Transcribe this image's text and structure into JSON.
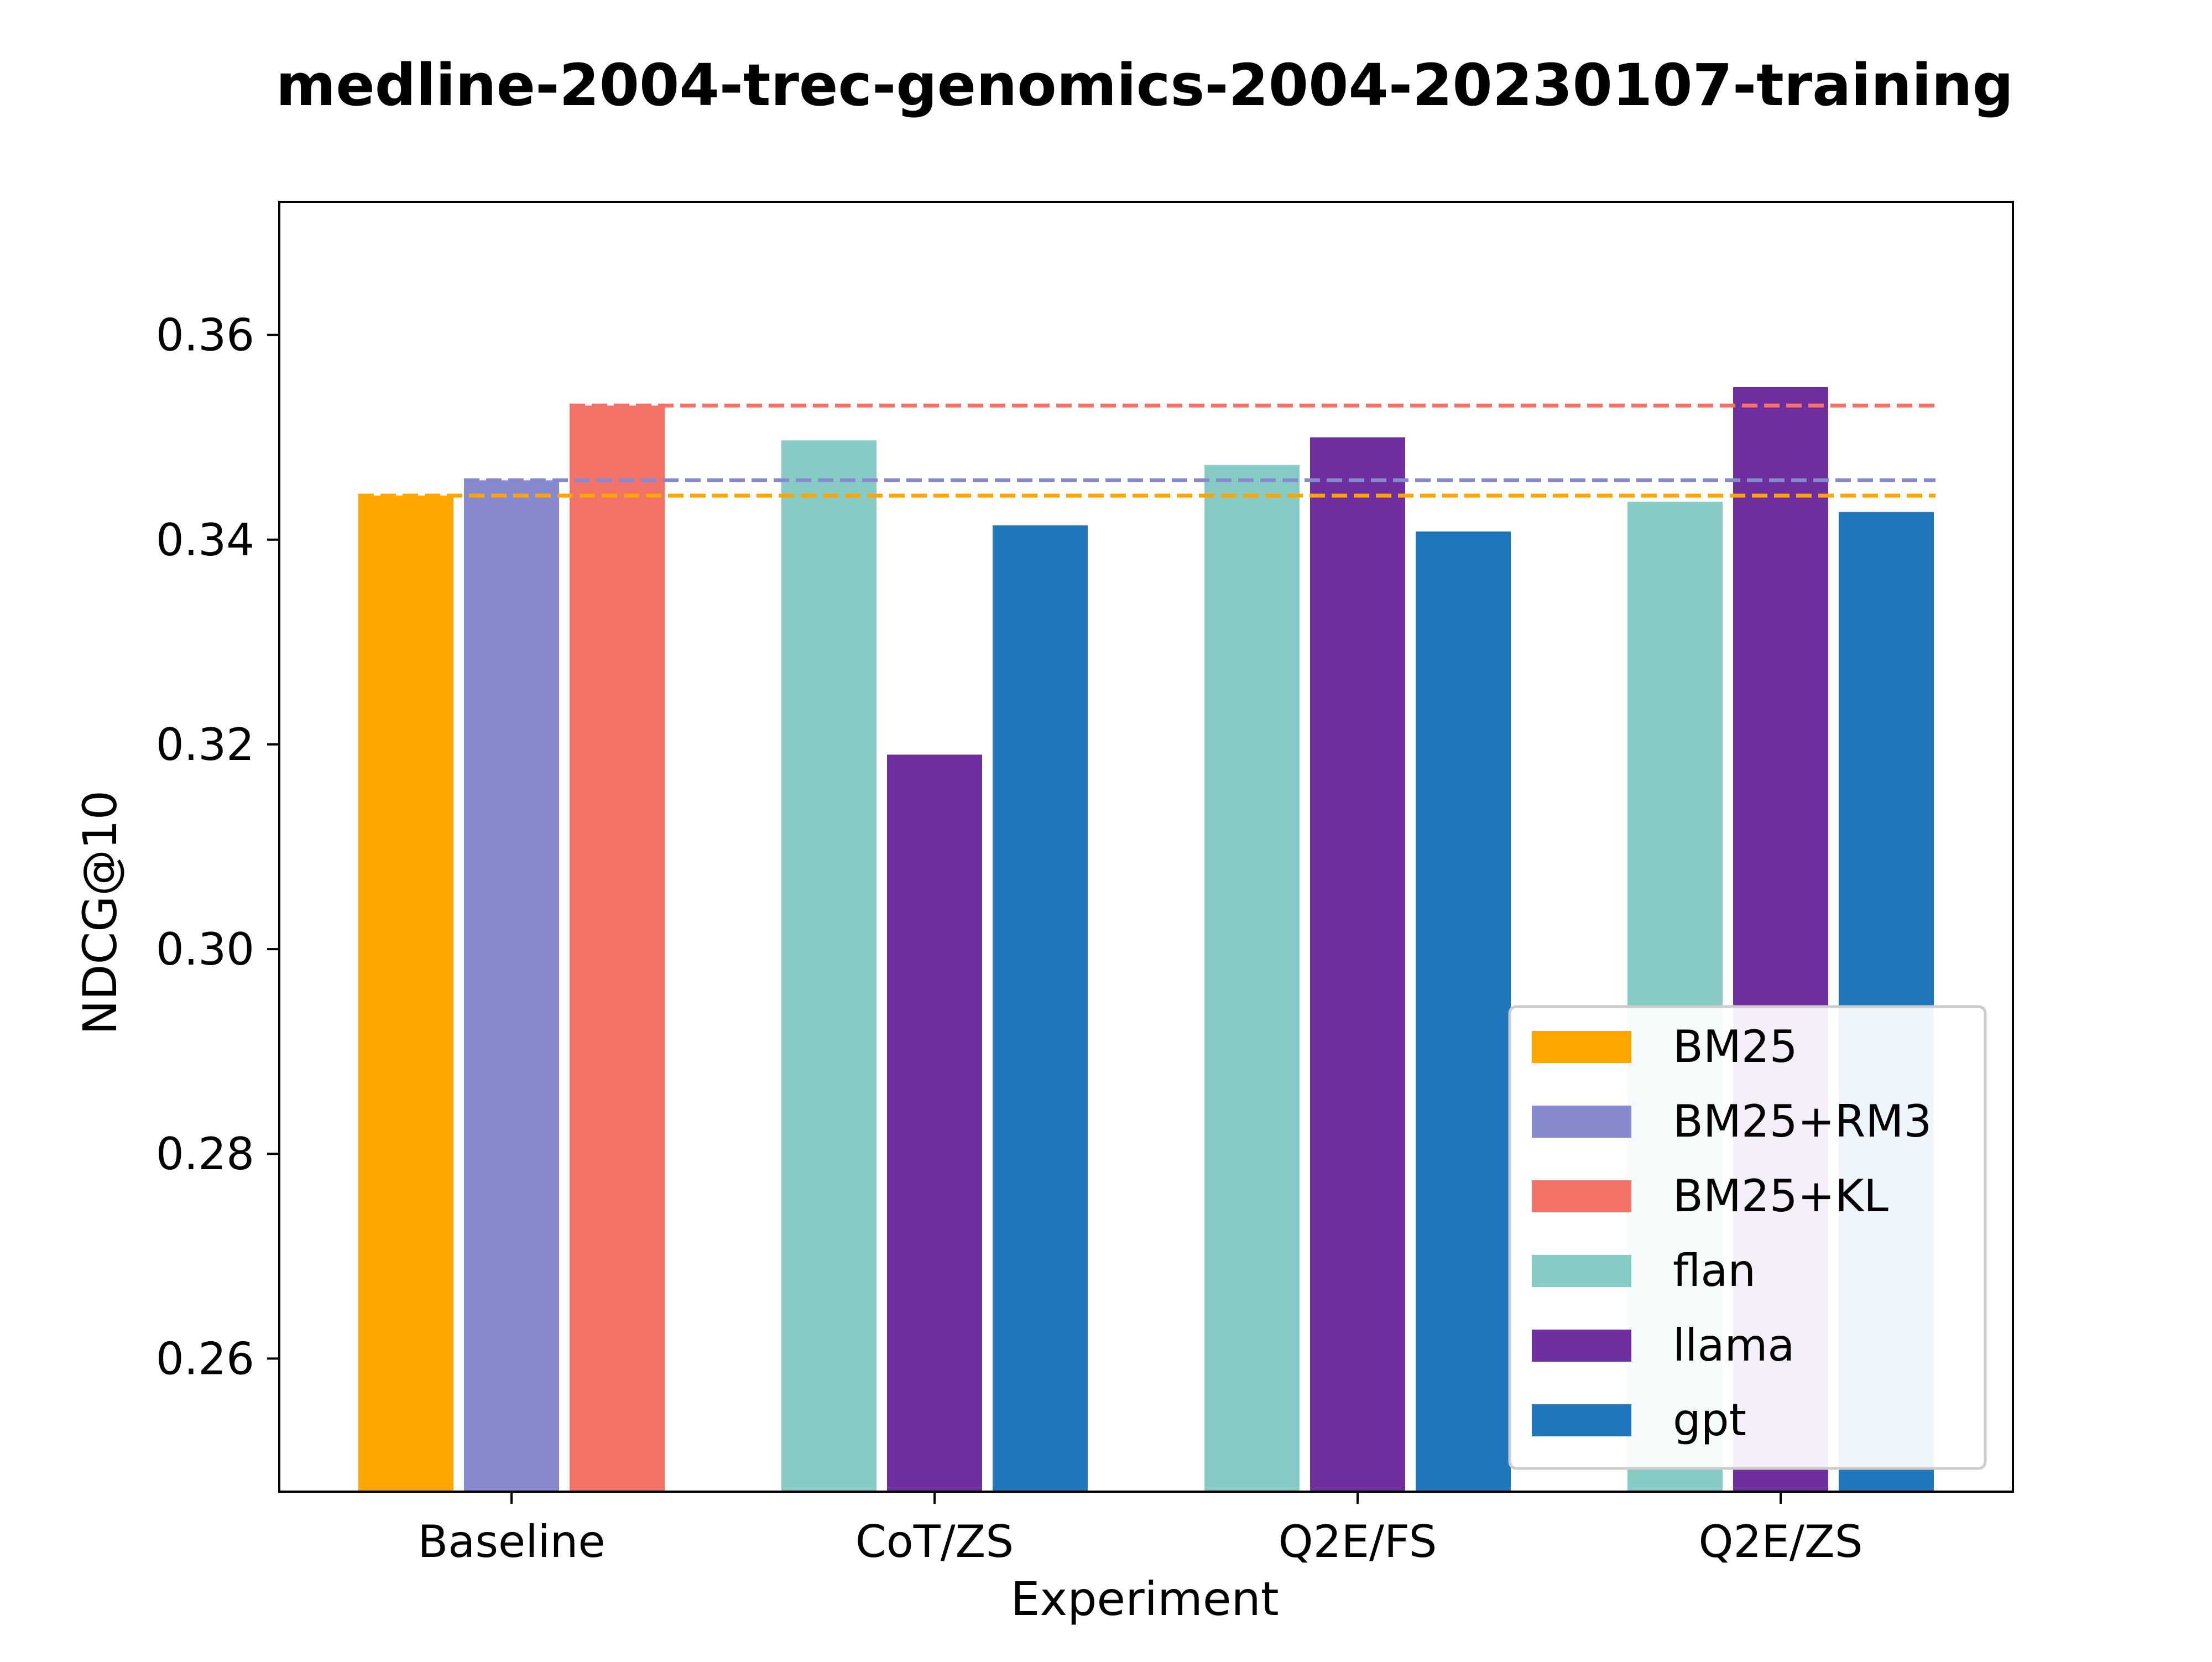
{
  "chart_data": {
    "type": "bar",
    "title": "medline-2004-trec-genomics-2004-20230107-training",
    "xlabel": "Experiment",
    "ylabel": "NDCG@10",
    "ylim": [
      0.247,
      0.373
    ],
    "yticks": [
      "0.26",
      "0.28",
      "0.30",
      "0.32",
      "0.34",
      "0.36"
    ],
    "categories": [
      "Baseline",
      "CoT/ZS",
      "Q2E/FS",
      "Q2E/ZS"
    ],
    "baseline_series": [
      {
        "name": "BM25",
        "color": "#FFA500",
        "value": 0.3443
      },
      {
        "name": "BM25+RM3",
        "color": "#8789CF",
        "value": 0.3458
      },
      {
        "name": "BM25+KL",
        "color": "#F37267",
        "value": 0.3531
      }
    ],
    "series": [
      {
        "name": "flan",
        "color": "#86CBC4",
        "values": [
          null,
          0.3497,
          0.3473,
          0.3437
        ]
      },
      {
        "name": "llama",
        "color": "#6F2F9F",
        "values": [
          null,
          0.319,
          0.35,
          0.3549
        ]
      },
      {
        "name": "gpt",
        "color": "#2077BC",
        "values": [
          null,
          0.3414,
          0.3408,
          0.3427
        ]
      }
    ],
    "reference_lines": [
      {
        "series": "BM25",
        "value": 0.3443,
        "style": "dashed"
      },
      {
        "series": "BM25+RM3",
        "value": 0.3458,
        "style": "dashed"
      },
      {
        "series": "BM25+KL",
        "value": 0.3531,
        "style": "dashed"
      }
    ],
    "legend": {
      "placement": "lower-right",
      "entries": [
        "BM25",
        "BM25+RM3",
        "BM25+KL",
        "flan",
        "llama",
        "gpt"
      ]
    },
    "grid": false
  }
}
